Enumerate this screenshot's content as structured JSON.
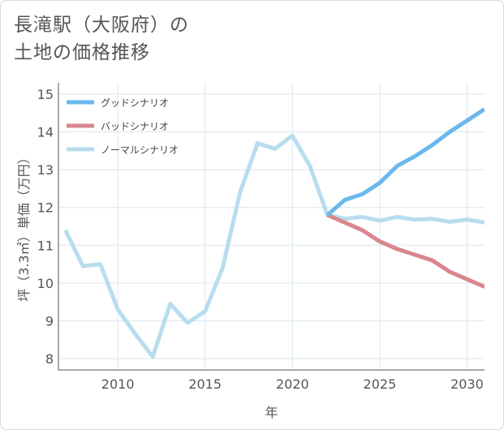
{
  "title_lines": [
    "長滝駅（大阪府）の",
    "土地の価格推移"
  ],
  "chart_data": {
    "type": "line",
    "title": "長滝駅（大阪府）の土地の価格推移",
    "xlabel": "年",
    "ylabel": "坪（3.3㎡）単価（万円）",
    "xlim": [
      2006.6,
      2031
    ],
    "ylim": [
      7.7,
      15.3
    ],
    "x_ticks": [
      2010,
      2015,
      2020,
      2025,
      2030
    ],
    "y_ticks": [
      8,
      9,
      10,
      11,
      12,
      13,
      14,
      15
    ],
    "grid": true,
    "legend_position": "top-left",
    "series": [
      {
        "name": "グッドシナリオ",
        "color": "#6bb8ec",
        "x": [
          2022,
          2023,
          2024,
          2025,
          2026,
          2027,
          2028,
          2029,
          2030,
          2031
        ],
        "values": [
          11.8,
          12.2,
          12.35,
          12.65,
          13.1,
          13.35,
          13.65,
          14.0,
          14.3,
          14.6
        ]
      },
      {
        "name": "バッドシナリオ",
        "color": "#d9868f",
        "x": [
          2022,
          2023,
          2024,
          2025,
          2026,
          2027,
          2028,
          2029,
          2030,
          2031
        ],
        "values": [
          11.8,
          11.6,
          11.4,
          11.1,
          10.9,
          10.75,
          10.6,
          10.3,
          10.1,
          9.9
        ]
      },
      {
        "name": "ノーマルシナリオ",
        "color": "#b8ddee",
        "x": [
          2007,
          2008,
          2009,
          2010,
          2011,
          2012,
          2013,
          2014,
          2015,
          2016,
          2017,
          2018,
          2019,
          2020,
          2021,
          2022,
          2023,
          2024,
          2025,
          2026,
          2027,
          2028,
          2029,
          2030,
          2031
        ],
        "values": [
          11.4,
          10.45,
          10.5,
          9.3,
          8.65,
          8.05,
          9.45,
          8.95,
          9.25,
          10.4,
          12.4,
          13.7,
          13.55,
          13.9,
          13.1,
          11.8,
          11.7,
          11.75,
          11.65,
          11.75,
          11.68,
          11.7,
          11.62,
          11.68,
          11.6
        ]
      }
    ]
  }
}
